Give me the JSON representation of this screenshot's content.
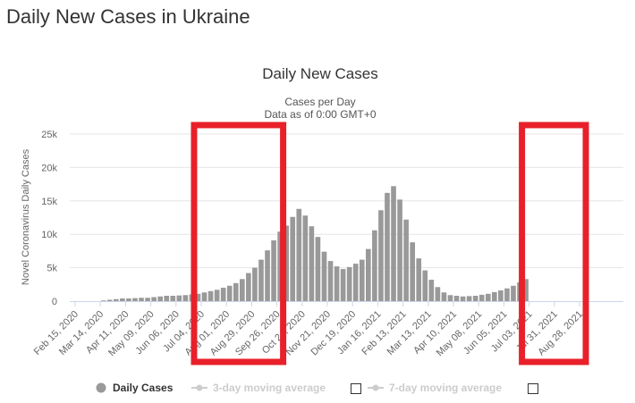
{
  "page": {
    "heading": "Daily New Cases in Ukraine"
  },
  "legend": {
    "items": [
      {
        "label": "Daily Cases",
        "active": true
      },
      {
        "label": "3-day moving average",
        "active": false
      },
      {
        "label": "7-day moving average",
        "active": false
      }
    ]
  },
  "colors": {
    "bar": "#999999",
    "highlight": "#e8202a",
    "grid": "#e6e6e6",
    "legend_inactive": "#cccccc"
  },
  "chart_data": {
    "type": "bar",
    "title": "Daily New Cases",
    "subtitle": "Cases per Day",
    "subtitle2": "Data as of 0:00 GMT+0",
    "ylabel": "Novel Coronavirus Daily Cases",
    "ylim": [
      0,
      25000
    ],
    "y_ticks": [
      "0",
      "5k",
      "10k",
      "15k",
      "20k",
      "25k"
    ],
    "x_tick_labels": [
      "Feb 15, 2020",
      "Mar 14, 2020",
      "Apr 11, 2020",
      "May 09, 2020",
      "Jun 06, 2020",
      "Jul 04, 2020",
      "Aug 01, 2020",
      "Aug 29, 2020",
      "Sep 26, 2020",
      "Oct 24, 2020",
      "Nov 21, 2020",
      "Dec 19, 2020",
      "Jan 16, 2021",
      "Feb 13, 2021",
      "Mar 13, 2021",
      "Apr 10, 2021",
      "May 08, 2021",
      "Jun 05, 2021",
      "Jul 03, 2021",
      "Jul 31, 2021",
      "Aug 28, 2021"
    ],
    "x_start": "2020-02-15",
    "series": [
      {
        "name": "Daily Cases",
        "weekly_values": [
          0,
          0,
          0,
          0,
          100,
          200,
          300,
          400,
          400,
          450,
          500,
          500,
          600,
          700,
          800,
          800,
          850,
          900,
          1000,
          1100,
          1300,
          1500,
          1700,
          2000,
          2300,
          2700,
          3300,
          4200,
          5000,
          6200,
          7600,
          9100,
          10400,
          11300,
          12600,
          13800,
          12800,
          11200,
          9600,
          7400,
          6000,
          5200,
          4800,
          5100,
          5600,
          6200,
          7800,
          10600,
          13600,
          16200,
          17200,
          15200,
          12200,
          8800,
          6400,
          4600,
          3200,
          2100,
          1300,
          900,
          800,
          700,
          750,
          800,
          950,
          1100,
          1350,
          1600,
          1900,
          2300,
          2800,
          3300
        ]
      }
    ],
    "highlight_ranges": [
      {
        "from": "Jul 04, 2020",
        "to": "Sep 26, 2020"
      },
      {
        "from": "Jul 03, 2021",
        "to": "Aug 28, 2021"
      }
    ]
  }
}
